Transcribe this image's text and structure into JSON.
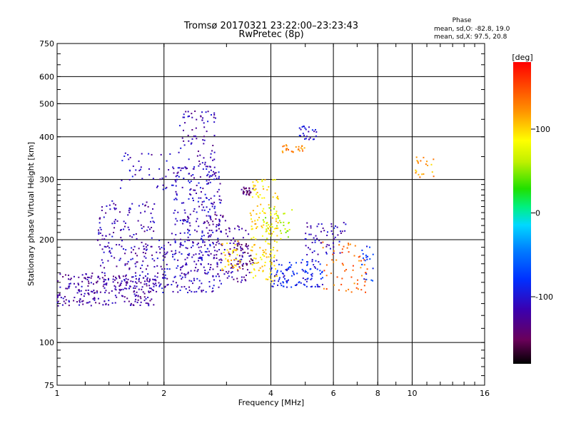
{
  "chart_data": {
    "type": "scatter",
    "title": "Tromsø 20170321 23:22:00–23:23:43",
    "subtitle": "RwPretec (8p)",
    "xlabel": "Frequency [MHz]",
    "ylabel": "Stationary phase Virtual Height [km]",
    "x_scale": "log",
    "y_scale": "log",
    "xlim": [
      1,
      16
    ],
    "ylim": [
      75,
      750
    ],
    "x_ticks": [
      1,
      2,
      4,
      6,
      8,
      10,
      16
    ],
    "x_tick_labels": [
      "1",
      "2",
      "4",
      "6",
      "8",
      "10",
      "16"
    ],
    "y_ticks": [
      75,
      100,
      200,
      300,
      400,
      500,
      600,
      750
    ],
    "y_tick_labels": [
      "75",
      "100",
      "200",
      "300",
      "400",
      "500",
      "600",
      "750"
    ],
    "grid": true,
    "phase_info": {
      "heading": "Phase",
      "line1": "mean, sd,O: -82.8, 19.0",
      "line2": "mean, sd,X:  97.5, 20.8"
    },
    "colorbar": {
      "label": "[deg]",
      "range": [
        -180,
        180
      ],
      "ticks": [
        100,
        0,
        -100
      ],
      "tick_labels": [
        "100",
        "0",
        "-100"
      ]
    },
    "clusters": [
      {
        "phase": -120,
        "freq": [
          1.0,
          1.9
        ],
        "height": [
          128,
          160
        ],
        "count": 260
      },
      {
        "phase": -115,
        "freq": [
          1.3,
          1.9
        ],
        "height": [
          150,
          260
        ],
        "count": 180
      },
      {
        "phase": -110,
        "freq": [
          1.9,
          2.9
        ],
        "height": [
          140,
          200
        ],
        "count": 220
      },
      {
        "phase": -110,
        "freq": [
          2.1,
          2.9
        ],
        "height": [
          200,
          330
        ],
        "count": 200
      },
      {
        "phase": -115,
        "freq": [
          2.2,
          2.8
        ],
        "height": [
          330,
          480
        ],
        "count": 70
      },
      {
        "phase": -120,
        "freq": [
          2.8,
          3.5
        ],
        "height": [
          150,
          220
        ],
        "count": 90
      },
      {
        "phase": -145,
        "freq": [
          3.2,
          3.6
        ],
        "height": [
          165,
          195
        ],
        "count": 30
      },
      {
        "phase": -140,
        "freq": [
          3.3,
          3.6
        ],
        "height": [
          270,
          285
        ],
        "count": 25
      },
      {
        "phase": 100,
        "freq": [
          3.5,
          4.2
        ],
        "height": [
          150,
          300
        ],
        "count": 160
      },
      {
        "phase": 110,
        "freq": [
          2.9,
          3.3
        ],
        "height": [
          160,
          200
        ],
        "count": 40
      },
      {
        "phase": -90,
        "freq": [
          4.0,
          5.6
        ],
        "height": [
          145,
          175
        ],
        "count": 110
      },
      {
        "phase": -110,
        "freq": [
          5.0,
          6.5
        ],
        "height": [
          180,
          225
        ],
        "count": 60
      },
      {
        "phase": 130,
        "freq": [
          4.3,
          5.0
        ],
        "height": [
          360,
          380
        ],
        "count": 25
      },
      {
        "phase": -100,
        "freq": [
          4.8,
          5.4
        ],
        "height": [
          390,
          430
        ],
        "count": 25
      },
      {
        "phase": 140,
        "freq": [
          5.6,
          7.5
        ],
        "height": [
          140,
          200
        ],
        "count": 60
      },
      {
        "phase": -80,
        "freq": [
          7.2,
          7.8
        ],
        "height": [
          150,
          195
        ],
        "count": 20
      },
      {
        "phase": 120,
        "freq": [
          10.2,
          11.5
        ],
        "height": [
          300,
          350
        ],
        "count": 20
      },
      {
        "phase": -110,
        "freq": [
          1.5,
          2.1
        ],
        "height": [
          280,
          360
        ],
        "count": 40
      },
      {
        "phase": -130,
        "freq": [
          2.6,
          3.0
        ],
        "height": [
          220,
          240
        ],
        "count": 20
      },
      {
        "phase": 60,
        "freq": [
          3.8,
          4.6
        ],
        "height": [
          200,
          250
        ],
        "count": 40
      }
    ]
  }
}
